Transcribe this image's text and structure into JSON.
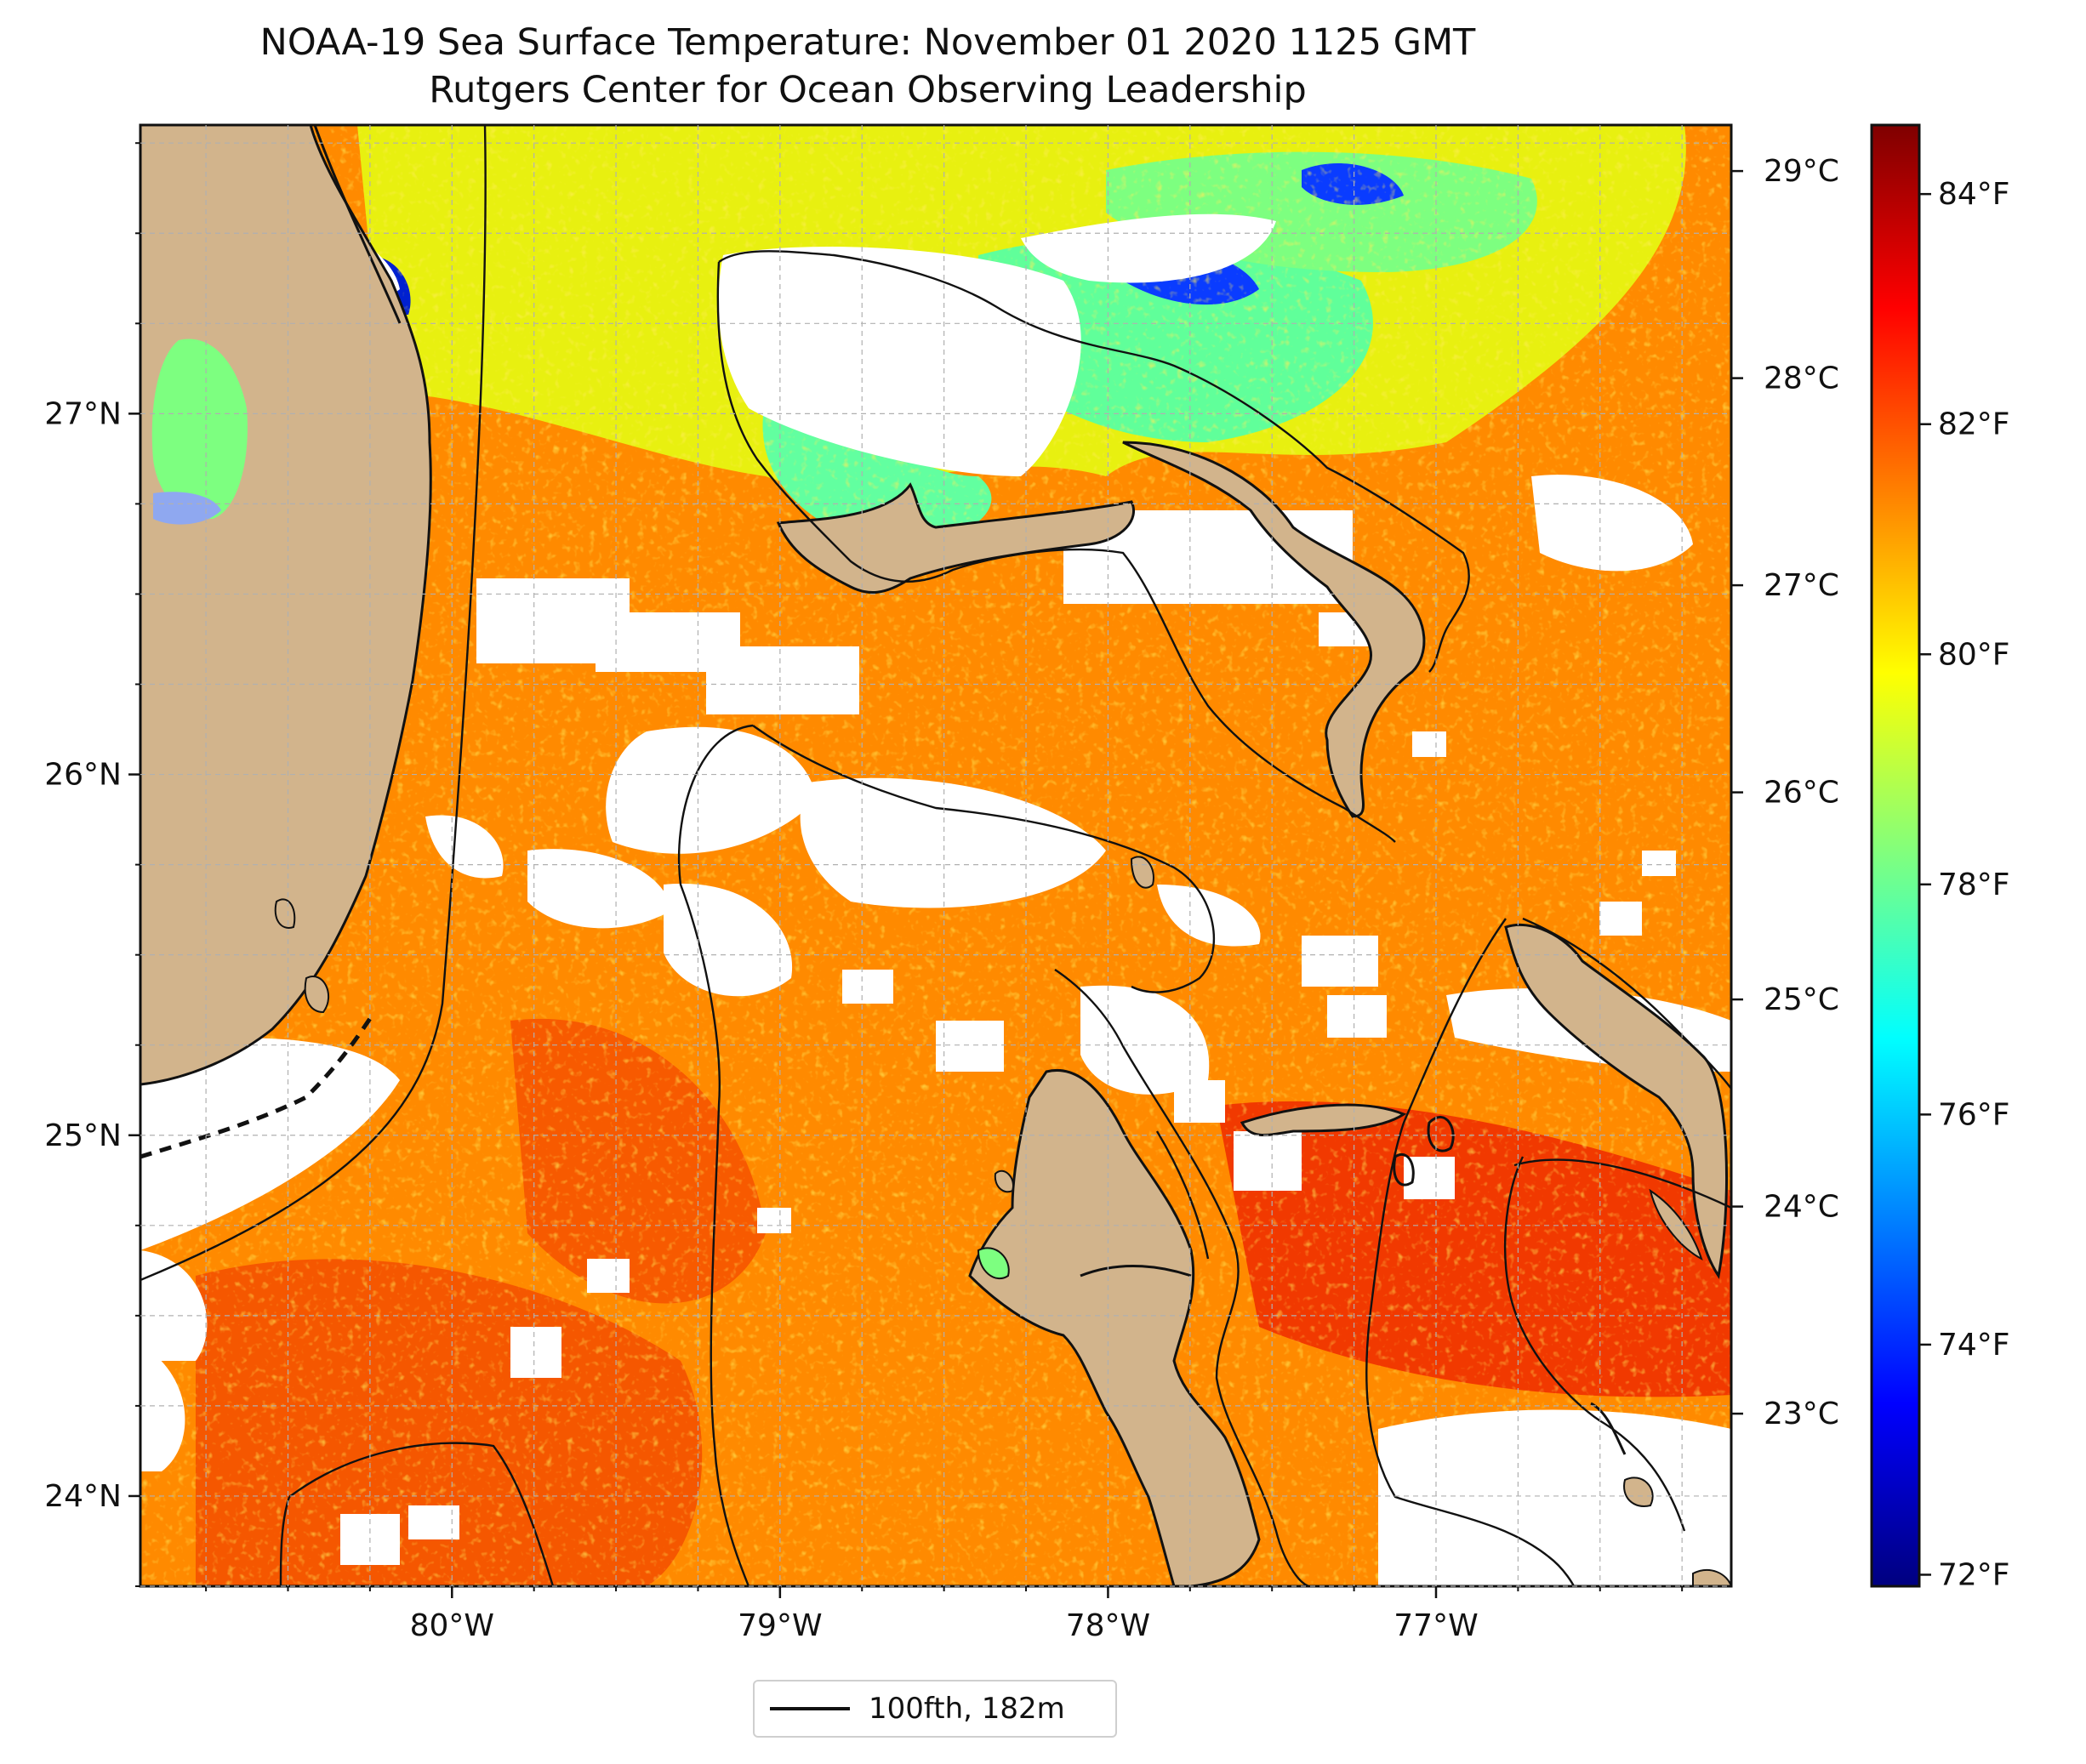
{
  "title": {
    "line1": "NOAA-19 Sea Surface Temperature: November 01 2020 1125 GMT",
    "line2": "Rutgers Center for Ocean Observing Leadership"
  },
  "map": {
    "lon_ticks": [
      "80°W",
      "79°W",
      "78°W",
      "77°W"
    ],
    "lat_ticks": [
      "27°N",
      "26°N",
      "25°N",
      "24°N"
    ],
    "extent": {
      "lon": [
        -80.95,
        -76.1
      ],
      "lat": [
        23.75,
        27.8
      ]
    },
    "land_color": "#d2b48c",
    "cloud_color": "#ffffff"
  },
  "colorbar": {
    "celsius_ticks": [
      "29°C",
      "28°C",
      "27°C",
      "26°C",
      "25°C",
      "24°C",
      "23°C"
    ],
    "fahrenheit_ticks": [
      "84°F",
      "82°F",
      "80°F",
      "78°F",
      "76°F",
      "74°F",
      "72°F"
    ],
    "range_f": [
      71.9,
      84.6
    ],
    "colormap": "jet"
  },
  "legend": {
    "label": "100fth, 182m"
  }
}
